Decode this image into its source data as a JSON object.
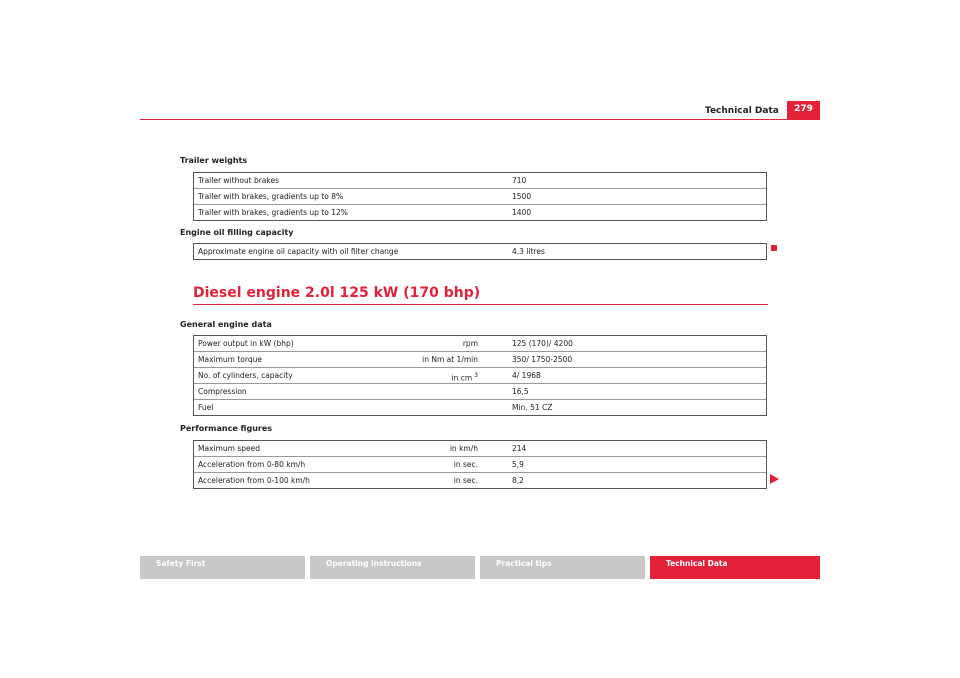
{
  "header": {
    "title": "Technical Data",
    "page": "279"
  },
  "sections": [
    {
      "heading": "Trailer weights",
      "rows": [
        {
          "label": "Trailer without brakes",
          "value": "710"
        },
        {
          "label": "Trailer with brakes, gradients up to 8%",
          "value": "1500"
        },
        {
          "label": "Trailer with brakes, gradients up to 12%",
          "value": "1400"
        }
      ]
    },
    {
      "heading": "Engine oil filling capacity",
      "rows": [
        {
          "label": "Approximate engine oil capacity with oil filter change",
          "value": "4.3 litres"
        }
      ]
    },
    {
      "title": "Diesel engine 2.0l 125 kW (170 bhp)"
    },
    {
      "heading": "General engine data",
      "rows": [
        {
          "label": "Power output in kW (bhp)",
          "unit": "rpm",
          "value": "125 (170)/ 4200"
        },
        {
          "label": "Maximum torque",
          "unit": "in Nm at 1/min",
          "value": "350/ 1750-2500"
        },
        {
          "label": "No. of cylinders, capacity",
          "unit": "in cm",
          "sup": "3",
          "value": "4/ 1968"
        },
        {
          "label": "Compression",
          "value": "16,5"
        },
        {
          "label": "Fuel",
          "value": "Min. 51 CZ"
        }
      ]
    },
    {
      "heading": "Performance figures",
      "rows": [
        {
          "label": "Maximum speed",
          "unit": "in km/h",
          "value": "214"
        },
        {
          "label": "Acceleration from 0-80 km/h",
          "unit": "in sec.",
          "value": "5,9"
        },
        {
          "label": "Acceleration from 0-100 km/h",
          "unit": "in sec.",
          "value": "8,2"
        }
      ]
    }
  ],
  "footer": {
    "tabs": [
      "Safety First",
      "Operating instructions",
      "Practical tips",
      "Technical Data"
    ]
  }
}
